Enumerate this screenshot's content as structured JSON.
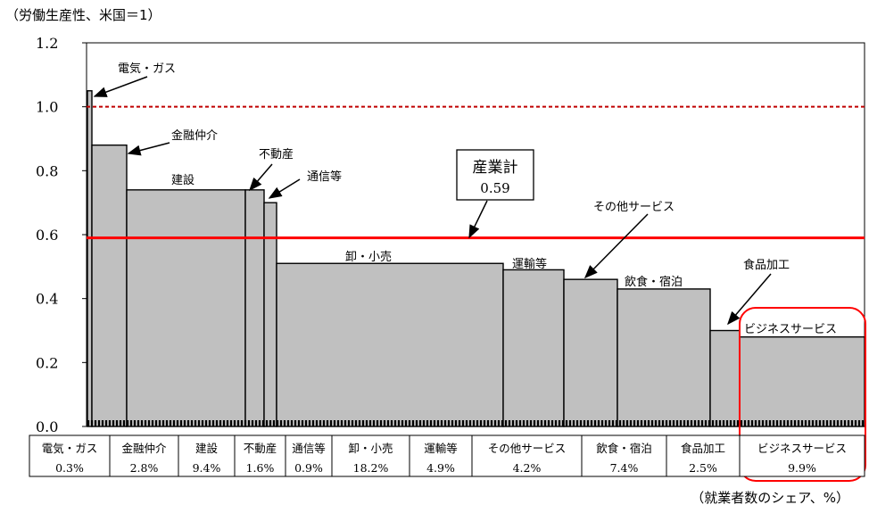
{
  "unit_note": "（労働生産性、米国＝1）",
  "share_note": "（就業者数のシェア、%）",
  "colors": {
    "bar": "#c0c0c0",
    "avg_line": "#ff0000",
    "ref_line": "#c00000",
    "highlight": "#ff0000",
    "axis": "#000000"
  },
  "chart_data": {
    "type": "bar",
    "variable_width": true,
    "ylim": [
      0,
      1.2
    ],
    "yticks": [
      0.0,
      0.2,
      0.4,
      0.6,
      0.8,
      1.0,
      1.2
    ],
    "ytick_labels": [
      "0.0",
      "0.2",
      "0.4",
      "0.6",
      "0.8",
      "1.0",
      "1.2"
    ],
    "reference_line": 1.0,
    "average_line": 0.59,
    "average_box": {
      "label": "産業計",
      "value": "0.59"
    },
    "categories": [
      "電気・ガス",
      "金融仲介",
      "建設",
      "不動産",
      "通信等",
      "卸・小売",
      "運輸等",
      "その他サービス",
      "飲食・宿泊",
      "食品加工",
      "ビジネスサービス"
    ],
    "share_labels": [
      "0.3%",
      "2.8%",
      "9.4%",
      "1.6%",
      "0.9%",
      "18.2%",
      "4.9%",
      "4.2%",
      "7.4%",
      "2.5%",
      "9.9%"
    ],
    "productivity": [
      1.05,
      0.88,
      0.74,
      0.74,
      0.7,
      0.51,
      0.49,
      0.46,
      0.43,
      0.3,
      0.28
    ],
    "bar_labels": [
      "電気・ガス",
      "金融仲介",
      "建設",
      "不動産",
      "通信等",
      "卸・小売",
      "運輸等",
      "その他サービス",
      "飲食・宿泊",
      "食品加工",
      "ビジネスサービス"
    ],
    "highlighted": "ビジネスサービス"
  }
}
